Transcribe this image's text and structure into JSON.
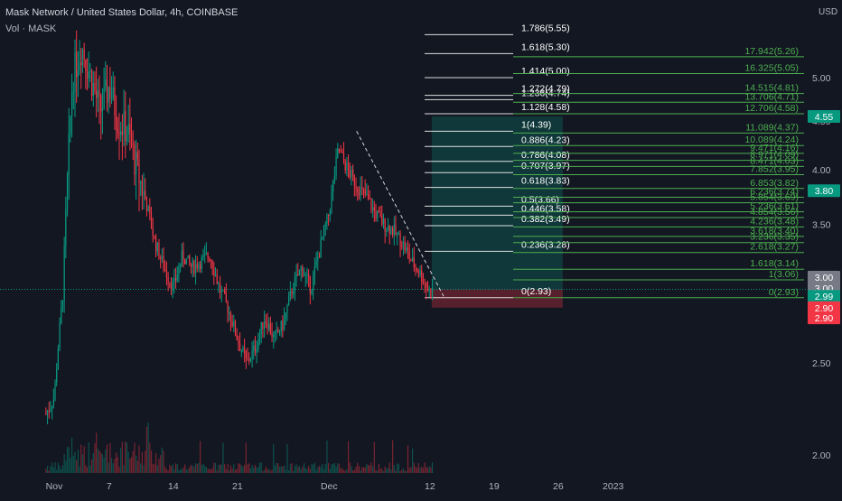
{
  "header": {
    "symbol_line": "Mask Network / United States Dollar, 4h, COINBASE",
    "volume_label": "Vol · MASK"
  },
  "price_axis": {
    "currency": "USD",
    "ticks": [
      "5.00",
      "4.50",
      "4.00",
      "3.50",
      "3.00",
      "2.50",
      "2.00"
    ]
  },
  "time_axis": {
    "ticks": [
      {
        "label": "Nov",
        "day": 0
      },
      {
        "label": "7",
        "day": 6
      },
      {
        "label": "14",
        "day": 13
      },
      {
        "label": "21",
        "day": 20
      },
      {
        "label": "Dec",
        "day": 30
      },
      {
        "label": "12",
        "day": 41
      },
      {
        "label": "19",
        "day": 48
      },
      {
        "label": "26",
        "day": 55
      },
      {
        "label": "2023",
        "day": 61
      }
    ]
  },
  "price_badges": [
    {
      "label": "4.55",
      "price": 4.55,
      "color": "#089981"
    },
    {
      "label": "3.80",
      "price": 3.8,
      "color": "#089981"
    },
    {
      "label": "3.00",
      "price": 3.08,
      "color": "#787b86"
    },
    {
      "label": "3.00",
      "price": 3.0,
      "color": "#787b86"
    },
    {
      "label": "2.99",
      "price": 2.94,
      "color": "#089981"
    },
    {
      "label": "2.90",
      "price": 2.86,
      "color": "#f23645"
    },
    {
      "label": "2.90",
      "price": 2.79,
      "color": "#f23645"
    }
  ],
  "fib_retracement": {
    "color": "#ffffff",
    "levels": [
      {
        "label": "1.786(5.55)",
        "price": 5.55
      },
      {
        "label": "1.618(5.30)",
        "price": 5.3
      },
      {
        "label": "1.414(5.00)",
        "price": 5.0
      },
      {
        "label": "1.272(4.79)",
        "price": 4.79
      },
      {
        "label": "1.236(4.74)",
        "price": 4.74
      },
      {
        "label": "1.128(4.58)",
        "price": 4.58
      },
      {
        "label": "1(4.39)",
        "price": 4.39
      },
      {
        "label": "0.886(4.23)",
        "price": 4.23
      },
      {
        "label": "0.786(4.08)",
        "price": 4.08
      },
      {
        "label": "0.707(3.97)",
        "price": 3.97
      },
      {
        "label": "0.618(3.83)",
        "price": 3.83
      },
      {
        "label": "0.5(3.66)",
        "price": 3.66
      },
      {
        "label": "0.446(3.58)",
        "price": 3.58
      },
      {
        "label": "0.382(3.49)",
        "price": 3.49
      },
      {
        "label": "0.236(3.28)",
        "price": 3.28
      },
      {
        "label": "0(2.93)",
        "price": 2.93
      }
    ]
  },
  "fib_extension": {
    "color": "#4caf50",
    "levels": [
      {
        "label": "17.942(5.26)",
        "price": 5.26
      },
      {
        "label": "16.325(5.05)",
        "price": 5.05
      },
      {
        "label": "14.515(4.81)",
        "price": 4.81
      },
      {
        "label": "13.706(4.71)",
        "price": 4.71
      },
      {
        "label": "12.706(4.58)",
        "price": 4.58
      },
      {
        "label": "11.089(4.37)",
        "price": 4.37
      },
      {
        "label": "10.089(4.24)",
        "price": 4.24
      },
      {
        "label": "9.471(4.16)",
        "price": 4.16
      },
      {
        "label": "8.971(4.09)",
        "price": 4.09
      },
      {
        "label": "8.471(4.03)",
        "price": 4.03
      },
      {
        "label": "7.852(3.95)",
        "price": 3.95
      },
      {
        "label": "6.853(3.82)",
        "price": 3.82
      },
      {
        "label": "6.236(3.74)",
        "price": 3.74
      },
      {
        "label": "5.854(3.69)",
        "price": 3.69
      },
      {
        "label": "5.236(3.61)",
        "price": 3.61
      },
      {
        "label": "4.854(3.56)",
        "price": 3.56
      },
      {
        "label": "4.236(3.48)",
        "price": 3.48
      },
      {
        "label": "3.618(3.40)",
        "price": 3.4
      },
      {
        "label": "3.236(3.35)",
        "price": 3.35
      },
      {
        "label": "2.618(3.27)",
        "price": 3.27
      },
      {
        "label": "1.618(3.14)",
        "price": 3.14
      },
      {
        "label": "1(3.06)",
        "price": 3.06
      },
      {
        "label": "0(2.93)",
        "price": 2.93
      }
    ]
  },
  "position_tool": {
    "entry": 2.99,
    "target": 4.55,
    "stop": 2.86,
    "start_day": 41.2,
    "end_day": 55.5,
    "profit_color": "#089981",
    "loss_color": "#f23645"
  },
  "trend_line": {
    "start_day": 33,
    "start_price": 4.39,
    "end_day": 42.5,
    "end_price": 2.94
  },
  "last_price_line": {
    "price": 2.99,
    "color": "#089981"
  },
  "chart_data": {
    "type": "candlestick",
    "symbol": "Mask Network / United States Dollar",
    "interval": "4h",
    "exchange": "COINBASE",
    "ylim": [
      1.9,
      5.6
    ],
    "price_scale": "log",
    "currency": "USD",
    "x_ticks": [
      "Nov",
      "7",
      "14",
      "21",
      "Dec",
      "12",
      "19",
      "26",
      "2023"
    ],
    "y_ticks": [
      5.0,
      4.5,
      4.0,
      3.5,
      3.0,
      2.5,
      2.0
    ],
    "price_anchors": [
      [
        -1,
        2.2
      ],
      [
        0,
        2.3
      ],
      [
        1,
        3.0
      ],
      [
        2,
        5.0
      ],
      [
        3,
        5.4
      ],
      [
        4,
        5.0
      ],
      [
        5,
        4.6
      ],
      [
        6,
        4.9
      ],
      [
        7,
        4.5
      ],
      [
        8,
        4.4
      ],
      [
        9,
        4.0
      ],
      [
        10,
        3.7
      ],
      [
        11,
        3.35
      ],
      [
        12,
        3.15
      ],
      [
        13,
        3.0
      ],
      [
        14,
        3.25
      ],
      [
        15,
        3.15
      ],
      [
        16,
        3.2
      ],
      [
        17,
        3.25
      ],
      [
        18,
        3.0
      ],
      [
        19,
        2.85
      ],
      [
        20,
        2.65
      ],
      [
        21,
        2.5
      ],
      [
        22,
        2.6
      ],
      [
        23,
        2.8
      ],
      [
        24,
        2.65
      ],
      [
        25,
        2.75
      ],
      [
        26,
        3.0
      ],
      [
        27,
        3.15
      ],
      [
        28,
        3.0
      ],
      [
        29,
        3.3
      ],
      [
        30,
        3.6
      ],
      [
        31,
        4.2
      ],
      [
        32,
        4.0
      ],
      [
        33,
        3.85
      ],
      [
        34,
        3.75
      ],
      [
        35,
        3.6
      ],
      [
        36,
        3.5
      ],
      [
        37,
        3.45
      ],
      [
        38,
        3.35
      ],
      [
        39,
        3.2
      ],
      [
        40,
        3.1
      ],
      [
        41,
        2.96
      ],
      [
        41.4,
        2.99
      ]
    ],
    "fib_retracement_levels": [
      [
        1.786,
        5.55
      ],
      [
        1.618,
        5.3
      ],
      [
        1.414,
        5.0
      ],
      [
        1.272,
        4.79
      ],
      [
        1.236,
        4.74
      ],
      [
        1.128,
        4.58
      ],
      [
        1,
        4.39
      ],
      [
        0.886,
        4.23
      ],
      [
        0.786,
        4.08
      ],
      [
        0.707,
        3.97
      ],
      [
        0.618,
        3.83
      ],
      [
        0.5,
        3.66
      ],
      [
        0.446,
        3.58
      ],
      [
        0.382,
        3.49
      ],
      [
        0.236,
        3.28
      ],
      [
        0,
        2.93
      ]
    ],
    "long_position": {
      "entry": 2.99,
      "take_profit": 4.55,
      "stop_loss": 2.86
    },
    "last_price": 2.99,
    "volume_series": "Vol · MASK"
  }
}
